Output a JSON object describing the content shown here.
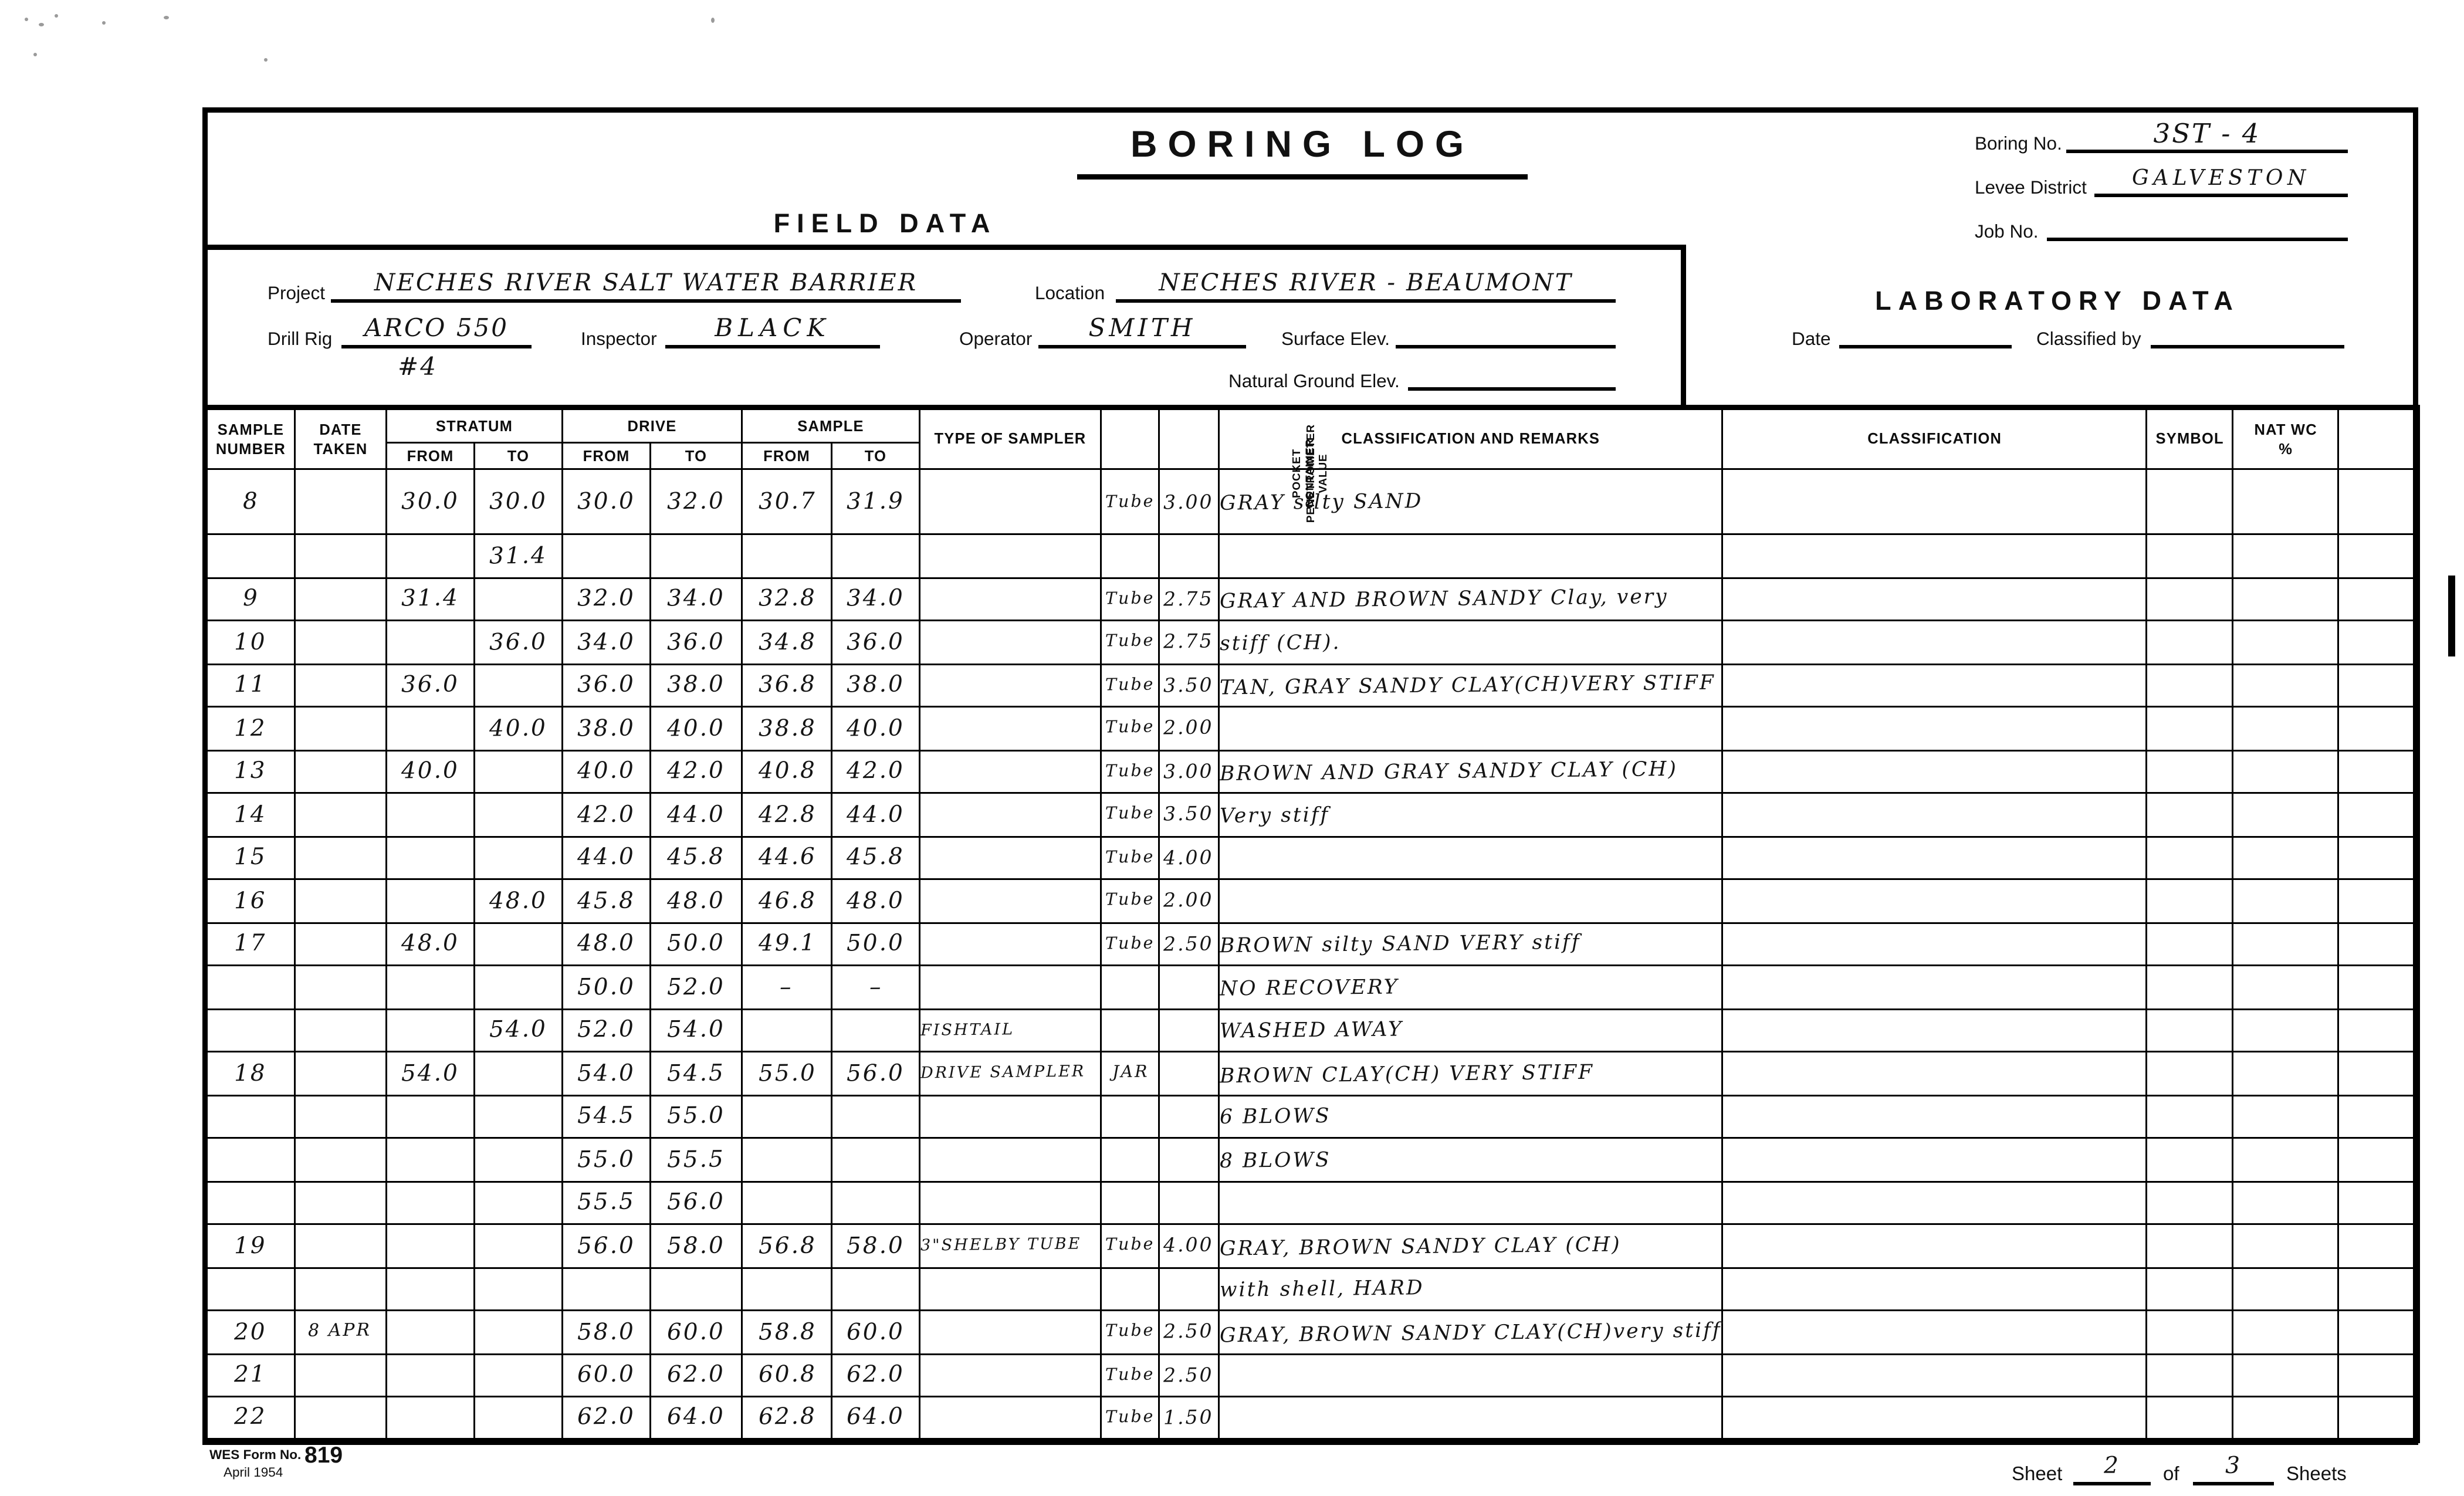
{
  "header": {
    "title": "BORING LOG",
    "field_data_heading": "FIELD DATA",
    "lab_data_heading": "LABORATORY DATA",
    "boring_no": {
      "label": "Boring No.",
      "value": "3ST - 4"
    },
    "levee_district": {
      "label": "Levee District",
      "value": "GALVESTON"
    },
    "job_no": {
      "label": "Job No.",
      "value": ""
    },
    "project": {
      "label": "Project",
      "value": "NECHES RIVER SALT WATER BARRIER"
    },
    "location": {
      "label": "Location",
      "value": "NECHES RIVER - BEAUMONT"
    },
    "drill_rig": {
      "label": "Drill Rig",
      "value": "ARCO 550",
      "value2": "#4"
    },
    "inspector": {
      "label": "Inspector",
      "value": "BLACK"
    },
    "operator": {
      "label": "Operator",
      "value": "SMITH"
    },
    "surface_elev": {
      "label": "Surface Elev.",
      "value": ""
    },
    "natural_ground_elev": {
      "label": "Natural Ground Elev.",
      "value": ""
    },
    "date": {
      "label": "Date",
      "value": ""
    },
    "classified_by": {
      "label": "Classified by",
      "value": ""
    }
  },
  "table": {
    "headers": {
      "sample_number": "SAMPLE NUMBER",
      "date_taken": "DATE TAKEN",
      "stratum": "STRATUM",
      "drive": "DRIVE",
      "sample": "SAMPLE",
      "from": "FROM",
      "to": "TO",
      "type_of_sampler": "TYPE OF SAMPLER",
      "container": "CONTAINER",
      "pocket_penetrometer": "POCKET\nPENETROMETER\nVALUE",
      "classification_and_remarks": "CLASSIFICATION AND REMARKS",
      "classification": "CLASSIFICATION",
      "symbol": "SYMBOL",
      "nat_wc": "NAT WC\n%"
    },
    "rows": [
      {
        "sample": "8",
        "date": "",
        "st_from": "30.0",
        "st_to": "30.0",
        "dr_from": "30.0",
        "dr_to": "32.0",
        "sa_from": "30.7",
        "sa_to": "31.9",
        "sampler": "",
        "container": "Tube",
        "pp": "3.00",
        "remarks": "GRAY silty SAND"
      },
      {
        "sample": "",
        "date": "",
        "st_from": "",
        "st_to": "31.4",
        "dr_from": "",
        "dr_to": "",
        "sa_from": "",
        "sa_to": "",
        "sampler": "",
        "container": "",
        "pp": "",
        "remarks": ""
      },
      {
        "sample": "9",
        "date": "",
        "st_from": "31.4",
        "st_to": "",
        "dr_from": "32.0",
        "dr_to": "34.0",
        "sa_from": "32.8",
        "sa_to": "34.0",
        "sampler": "",
        "container": "Tube",
        "pp": "2.75",
        "remarks": "GRAY AND BROWN SANDY Clay, very"
      },
      {
        "sample": "10",
        "date": "",
        "st_from": "",
        "st_to": "36.0",
        "dr_from": "34.0",
        "dr_to": "36.0",
        "sa_from": "34.8",
        "sa_to": "36.0",
        "sampler": "",
        "container": "Tube",
        "pp": "2.75",
        "remarks": "stiff (CH)."
      },
      {
        "sample": "11",
        "date": "",
        "st_from": "36.0",
        "st_to": "",
        "dr_from": "36.0",
        "dr_to": "38.0",
        "sa_from": "36.8",
        "sa_to": "38.0",
        "sampler": "",
        "container": "Tube",
        "pp": "3.50",
        "remarks": "TAN, GRAY SANDY CLAY(CH)VERY STIFF"
      },
      {
        "sample": "12",
        "date": "",
        "st_from": "",
        "st_to": "40.0",
        "dr_from": "38.0",
        "dr_to": "40.0",
        "sa_from": "38.8",
        "sa_to": "40.0",
        "sampler": "",
        "container": "Tube",
        "pp": "2.00",
        "remarks": ""
      },
      {
        "sample": "13",
        "date": "",
        "st_from": "40.0",
        "st_to": "",
        "dr_from": "40.0",
        "dr_to": "42.0",
        "sa_from": "40.8",
        "sa_to": "42.0",
        "sampler": "",
        "container": "Tube",
        "pp": "3.00",
        "remarks": "BROWN AND GRAY SANDY CLAY (CH)"
      },
      {
        "sample": "14",
        "date": "",
        "st_from": "",
        "st_to": "",
        "dr_from": "42.0",
        "dr_to": "44.0",
        "sa_from": "42.8",
        "sa_to": "44.0",
        "sampler": "",
        "container": "Tube",
        "pp": "3.50",
        "remarks": "Very stiff"
      },
      {
        "sample": "15",
        "date": "",
        "st_from": "",
        "st_to": "",
        "dr_from": "44.0",
        "dr_to": "45.8",
        "sa_from": "44.6",
        "sa_to": "45.8",
        "sampler": "",
        "container": "Tube",
        "pp": "4.00",
        "remarks": ""
      },
      {
        "sample": "16",
        "date": "",
        "st_from": "",
        "st_to": "48.0",
        "dr_from": "45.8",
        "dr_to": "48.0",
        "sa_from": "46.8",
        "sa_to": "48.0",
        "sampler": "",
        "container": "Tube",
        "pp": "2.00",
        "remarks": ""
      },
      {
        "sample": "17",
        "date": "",
        "st_from": "48.0",
        "st_to": "",
        "dr_from": "48.0",
        "dr_to": "50.0",
        "sa_from": "49.1",
        "sa_to": "50.0",
        "sampler": "",
        "container": "Tube",
        "pp": "2.50",
        "remarks": "BROWN silty SAND VERY stiff"
      },
      {
        "sample": "",
        "date": "",
        "st_from": "",
        "st_to": "",
        "dr_from": "50.0",
        "dr_to": "52.0",
        "sa_from": "–",
        "sa_to": "–",
        "sampler": "",
        "container": "",
        "pp": "",
        "remarks": "NO RECOVERY"
      },
      {
        "sample": "",
        "date": "",
        "st_from": "",
        "st_to": "54.0",
        "dr_from": "52.0",
        "dr_to": "54.0",
        "sa_from": "",
        "sa_to": "",
        "sampler": "FISHTAIL",
        "container": "",
        "pp": "",
        "remarks": "WASHED AWAY"
      },
      {
        "sample": "18",
        "date": "",
        "st_from": "54.0",
        "st_to": "",
        "dr_from": "54.0",
        "dr_to": "54.5",
        "sa_from": "55.0",
        "sa_to": "56.0",
        "sampler": "DRIVE SAMPLER",
        "container": "JAR",
        "pp": "",
        "remarks": "BROWN CLAY(CH) VERY STIFF"
      },
      {
        "sample": "",
        "date": "",
        "st_from": "",
        "st_to": "",
        "dr_from": "54.5",
        "dr_to": "55.0",
        "sa_from": "",
        "sa_to": "",
        "sampler": "",
        "container": "",
        "pp": "",
        "remarks": "6 BLOWS"
      },
      {
        "sample": "",
        "date": "",
        "st_from": "",
        "st_to": "",
        "dr_from": "55.0",
        "dr_to": "55.5",
        "sa_from": "",
        "sa_to": "",
        "sampler": "",
        "container": "",
        "pp": "",
        "remarks": "8 BLOWS"
      },
      {
        "sample": "",
        "date": "",
        "st_from": "",
        "st_to": "",
        "dr_from": "55.5",
        "dr_to": "56.0",
        "sa_from": "",
        "sa_to": "",
        "sampler": "",
        "container": "",
        "pp": "",
        "remarks": ""
      },
      {
        "sample": "19",
        "date": "",
        "st_from": "",
        "st_to": "",
        "dr_from": "56.0",
        "dr_to": "58.0",
        "sa_from": "56.8",
        "sa_to": "58.0",
        "sampler": "3\"SHELBY TUBE",
        "container": "Tube",
        "pp": "4.00",
        "remarks": "GRAY, BROWN SANDY CLAY (CH)"
      },
      {
        "sample": "",
        "date": "",
        "st_from": "",
        "st_to": "",
        "dr_from": "",
        "dr_to": "",
        "sa_from": "",
        "sa_to": "",
        "sampler": "",
        "container": "",
        "pp": "",
        "remarks": "with shell, HARD"
      },
      {
        "sample": "20",
        "date": "8 APR",
        "st_from": "",
        "st_to": "",
        "dr_from": "58.0",
        "dr_to": "60.0",
        "sa_from": "58.8",
        "sa_to": "60.0",
        "sampler": "",
        "container": "Tube",
        "pp": "2.50",
        "remarks": "GRAY, BROWN SANDY CLAY(CH)very stiff"
      },
      {
        "sample": "21",
        "date": "",
        "st_from": "",
        "st_to": "",
        "dr_from": "60.0",
        "dr_to": "62.0",
        "sa_from": "60.8",
        "sa_to": "62.0",
        "sampler": "",
        "container": "Tube",
        "pp": "2.50",
        "remarks": ""
      },
      {
        "sample": "22",
        "date": "",
        "st_from": "",
        "st_to": "",
        "dr_from": "62.0",
        "dr_to": "64.0",
        "sa_from": "62.8",
        "sa_to": "64.0",
        "sampler": "",
        "container": "Tube",
        "pp": "1.50",
        "remarks": ""
      }
    ]
  },
  "footer": {
    "form_no_label": "WES Form No.",
    "form_no": "819",
    "form_date": "April 1954",
    "sheet_label": "Sheet",
    "sheet_no": "2",
    "of_label": "of",
    "sheet_total": "3",
    "sheets_label": "Sheets"
  }
}
